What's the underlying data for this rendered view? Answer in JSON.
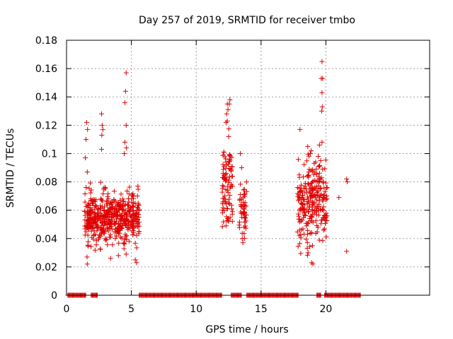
{
  "chart_data": {
    "type": "scatter",
    "title": "Day 257 of 2019, SRMTID for receiver tmbo",
    "xlabel": "GPS time / hours",
    "ylabel": "SRMTID / TECUs",
    "xlim": [
      0,
      28
    ],
    "ylim": [
      0,
      0.18
    ],
    "x_ticks": [
      "0",
      "5",
      "10",
      "15",
      "20"
    ],
    "x_tick_values": [
      0,
      5,
      10,
      15,
      20
    ],
    "y_ticks": [
      "0",
      "0.02",
      "0.04",
      "0.06",
      "0.08",
      "0.1",
      "0.12",
      "0.14",
      "0.16",
      "0.18"
    ],
    "y_tick_values": [
      0,
      0.02,
      0.04,
      0.06,
      0.08,
      0.1,
      0.12,
      0.14,
      0.16,
      0.18
    ],
    "grid": true,
    "marker": "+",
    "color": "#e00000",
    "series": [
      {
        "name": "SRMTID",
        "clusters": [
          {
            "x_range": [
              1.4,
              5.6
            ],
            "y_range": [
              0.022,
              0.085
            ],
            "y_center": 0.055,
            "count": 520
          },
          {
            "x_range": [
              12.0,
              12.8
            ],
            "y_range": [
              0.045,
              0.138
            ],
            "y_center": 0.08,
            "count": 90
          },
          {
            "x_range": [
              13.3,
              13.9
            ],
            "y_range": [
              0.036,
              0.1
            ],
            "y_center": 0.06,
            "count": 50
          },
          {
            "x_range": [
              17.8,
              20.1
            ],
            "y_range": [
              0.02,
              0.12
            ],
            "y_center": 0.065,
            "count": 260
          }
        ],
        "points": [
          [
            1.55,
            0.122
          ],
          [
            1.62,
            0.117
          ],
          [
            1.5,
            0.11
          ],
          [
            1.45,
            0.097
          ],
          [
            1.6,
            0.087
          ],
          [
            1.58,
            0.027
          ],
          [
            1.6,
            0.022
          ],
          [
            2.7,
            0.128
          ],
          [
            2.75,
            0.12
          ],
          [
            2.8,
            0.117
          ],
          [
            2.72,
            0.113
          ],
          [
            2.7,
            0.103
          ],
          [
            4.6,
            0.157
          ],
          [
            4.55,
            0.144
          ],
          [
            4.5,
            0.136
          ],
          [
            4.6,
            0.12
          ],
          [
            4.5,
            0.108
          ],
          [
            4.62,
            0.104
          ],
          [
            4.45,
            0.1
          ],
          [
            4.0,
            0.028
          ],
          [
            3.4,
            0.026
          ],
          [
            5.4,
            0.023
          ],
          [
            5.3,
            0.025
          ],
          [
            5.5,
            0.077
          ],
          [
            12.4,
            0.135
          ],
          [
            12.45,
            0.131
          ],
          [
            12.35,
            0.128
          ],
          [
            12.6,
            0.138
          ],
          [
            12.55,
            0.135
          ],
          [
            12.4,
            0.123
          ],
          [
            12.3,
            0.122
          ],
          [
            12.5,
            0.112
          ],
          [
            12.3,
            0.049
          ],
          [
            12.5,
            0.052
          ],
          [
            13.4,
            0.1
          ],
          [
            13.5,
            0.09
          ],
          [
            13.6,
            0.037
          ],
          [
            13.55,
            0.04
          ],
          [
            18.0,
            0.117
          ],
          [
            18.6,
            0.105
          ],
          [
            18.8,
            0.1
          ],
          [
            19.0,
            0.022
          ],
          [
            18.9,
            0.023
          ],
          [
            19.5,
            0.106
          ],
          [
            19.4,
            0.098
          ],
          [
            19.6,
            0.095
          ],
          [
            19.7,
            0.165
          ],
          [
            19.65,
            0.153
          ],
          [
            19.75,
            0.153
          ],
          [
            19.7,
            0.143
          ],
          [
            19.72,
            0.133
          ],
          [
            19.68,
            0.13
          ],
          [
            19.7,
            0.108
          ],
          [
            19.75,
            0.089
          ],
          [
            19.8,
            0.08
          ],
          [
            21.0,
            0.069
          ],
          [
            21.6,
            0.082
          ],
          [
            21.65,
            0.08
          ],
          [
            21.6,
            0.031
          ]
        ]
      },
      {
        "name": "zero-level markers",
        "y": 0,
        "x_segments": [
          [
            0.1,
            1.5
          ],
          [
            1.9,
            2.4
          ],
          [
            5.6,
            12.0
          ],
          [
            12.7,
            13.5
          ],
          [
            13.9,
            17.9
          ],
          [
            19.3,
            19.6
          ],
          [
            19.9,
            22.7
          ]
        ]
      }
    ]
  }
}
